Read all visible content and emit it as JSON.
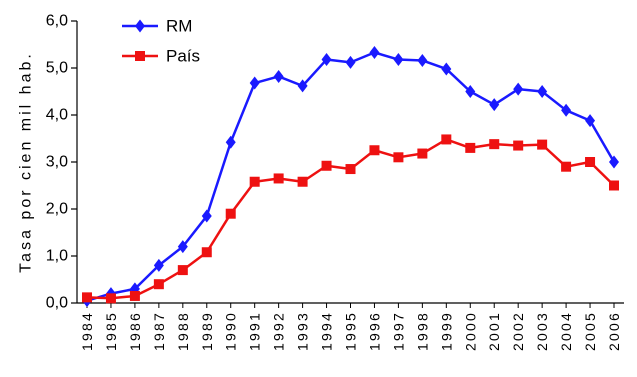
{
  "chart_data": {
    "type": "line",
    "title": "",
    "xlabel": "",
    "ylabel": "Tasa por cien mil hab.",
    "ylim": [
      0,
      6
    ],
    "yticks": [
      "0,0",
      "1,0",
      "2,0",
      "3,0",
      "4,0",
      "5,0",
      "6,0"
    ],
    "legend_position": "top-left",
    "grid": false,
    "categories": [
      "1984",
      "1985",
      "1986",
      "1987",
      "1988",
      "1989",
      "1990",
      "1991",
      "1992",
      "1993",
      "1994",
      "1995",
      "1996",
      "1997",
      "1998",
      "1999",
      "2000",
      "2001",
      "2002",
      "2003",
      "2004",
      "2005",
      "2006"
    ],
    "series": [
      {
        "name": "RM",
        "color": "#1a1aff",
        "marker": "diamond",
        "values": [
          0.05,
          0.2,
          0.3,
          0.8,
          1.2,
          1.85,
          3.42,
          4.68,
          4.82,
          4.62,
          5.18,
          5.12,
          5.33,
          5.18,
          5.16,
          4.98,
          4.5,
          4.22,
          4.55,
          4.5,
          4.1,
          3.88,
          3.0
        ]
      },
      {
        "name": "País",
        "color": "#ee1111",
        "marker": "square",
        "values": [
          0.12,
          0.1,
          0.15,
          0.4,
          0.7,
          1.08,
          1.9,
          2.58,
          2.65,
          2.58,
          2.92,
          2.85,
          3.25,
          3.1,
          3.18,
          3.48,
          3.3,
          3.38,
          3.35,
          3.37,
          2.9,
          3.0,
          2.5
        ]
      }
    ]
  }
}
